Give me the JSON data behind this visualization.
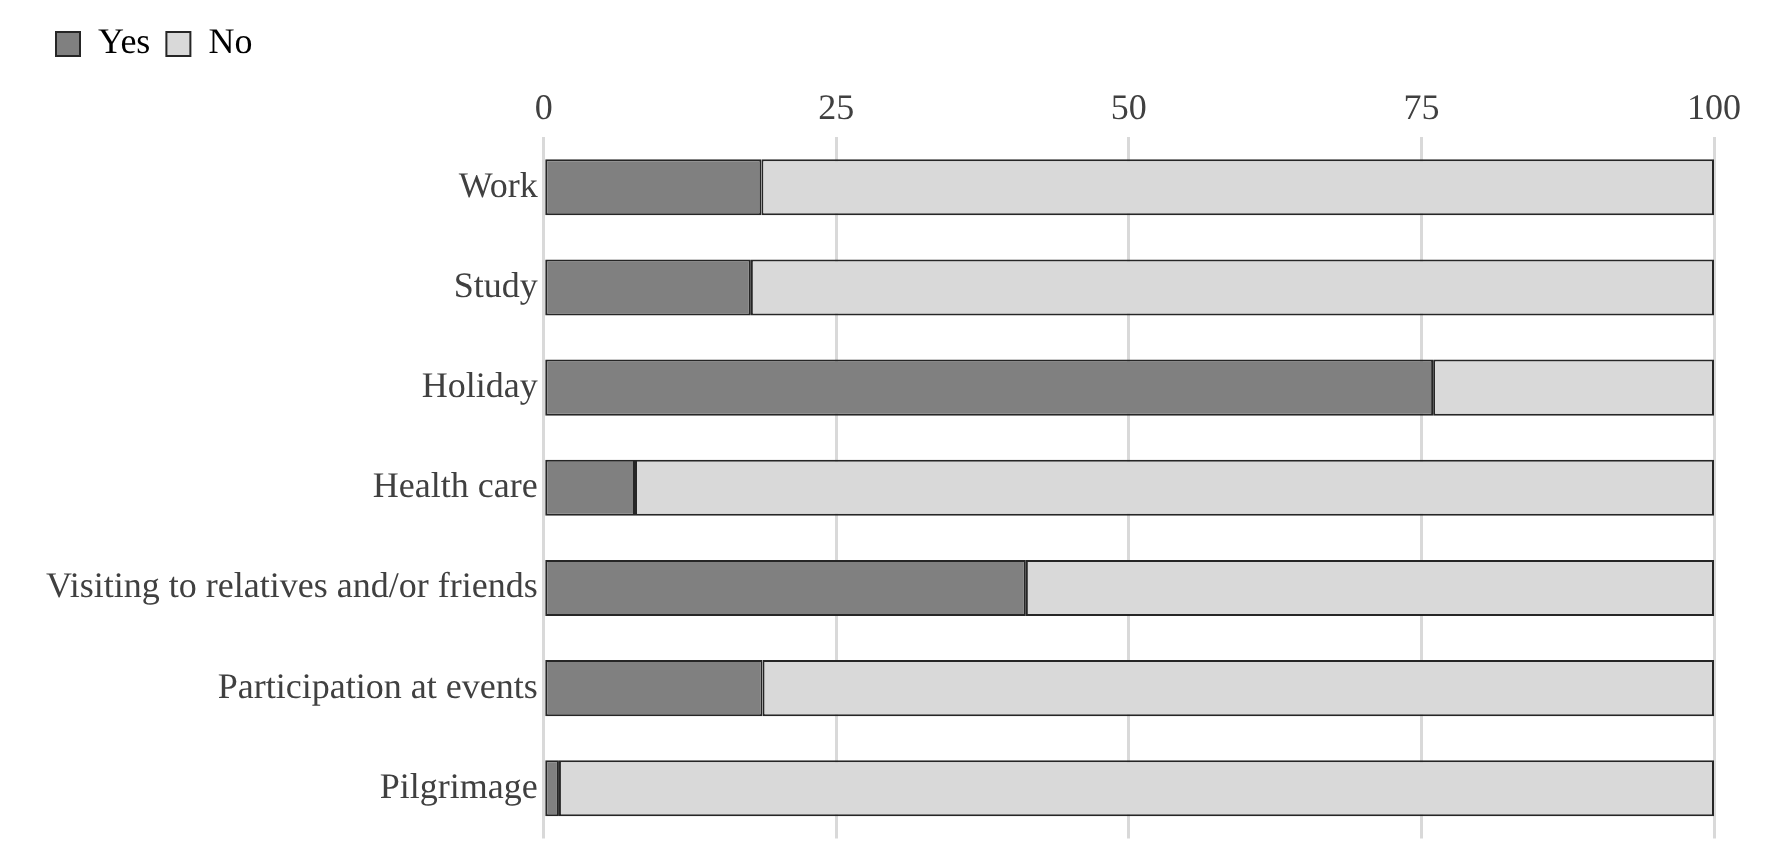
{
  "chart_data": {
    "type": "bar",
    "orientation": "horizontal",
    "stacked": true,
    "categories": [
      "Work",
      "Study",
      "Holiday",
      "Health care",
      "Visiting to relatives and/or friends",
      "Participation at events",
      "Pilgrimage"
    ],
    "series": [
      {
        "name": "Yes",
        "color": "#808080",
        "values": [
          18.6,
          17.7,
          76.0,
          7.8,
          41.2,
          18.7,
          1.3
        ]
      },
      {
        "name": "No",
        "color": "#d9d9d9",
        "values": [
          81.4,
          82.3,
          24.0,
          92.2,
          58.8,
          81.3,
          98.7
        ]
      }
    ],
    "xlim": [
      0,
      100
    ],
    "xticks": [
      0,
      25,
      50,
      75,
      100
    ],
    "grid": "x",
    "legend": "top left"
  }
}
